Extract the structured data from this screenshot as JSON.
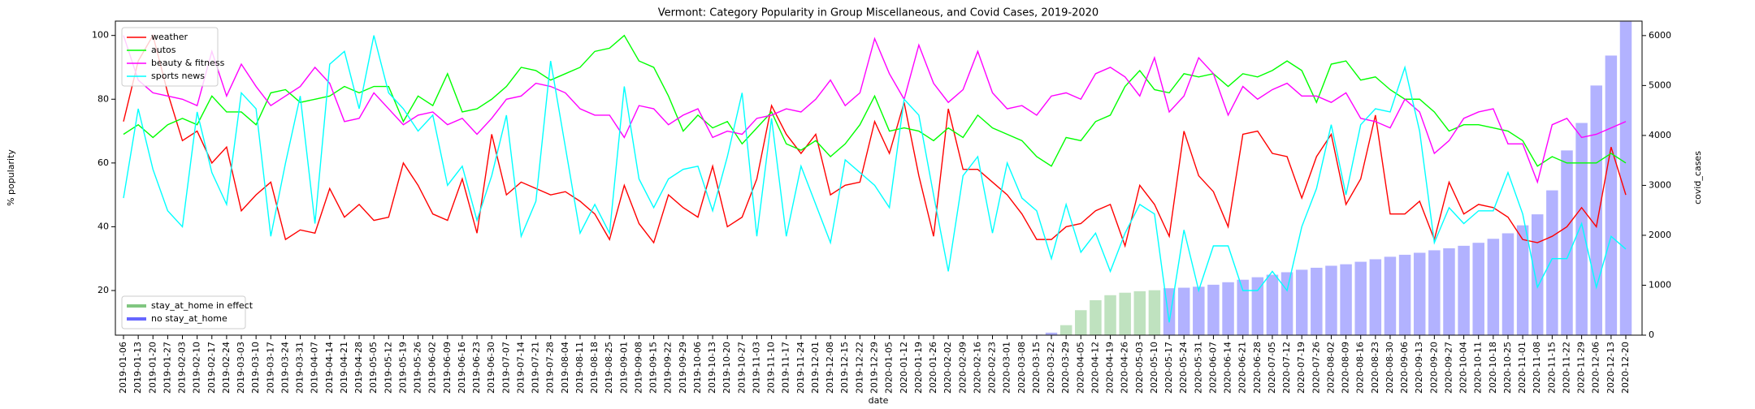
{
  "chart_data": {
    "type": "line",
    "title": "Vermont: Category Popularity in Group Miscellaneous, and Covid Cases, 2019-2020",
    "xlabel": "date",
    "ylabel": "% popularity",
    "y2label": "covid_cases",
    "x": [
      "2019-01-06",
      "2019-01-13",
      "2019-01-20",
      "2019-01-27",
      "2019-02-03",
      "2019-02-10",
      "2019-02-17",
      "2019-02-24",
      "2019-03-03",
      "2019-03-10",
      "2019-03-17",
      "2019-03-24",
      "2019-03-31",
      "2019-04-07",
      "2019-04-14",
      "2019-04-21",
      "2019-04-28",
      "2019-05-05",
      "2019-05-12",
      "2019-05-19",
      "2019-05-26",
      "2019-06-02",
      "2019-06-09",
      "2019-06-16",
      "2019-06-23",
      "2019-06-30",
      "2019-07-07",
      "2019-07-14",
      "2019-07-21",
      "2019-07-28",
      "2019-08-04",
      "2019-08-11",
      "2019-08-18",
      "2019-08-25",
      "2019-09-01",
      "2019-09-08",
      "2019-09-15",
      "2019-09-22",
      "2019-09-29",
      "2019-10-06",
      "2019-10-13",
      "2019-10-20",
      "2019-10-27",
      "2019-11-03",
      "2019-11-10",
      "2019-11-17",
      "2019-11-24",
      "2019-12-01",
      "2019-12-08",
      "2019-12-15",
      "2019-12-22",
      "2019-12-29",
      "2020-01-05",
      "2020-01-12",
      "2020-01-19",
      "2020-01-26",
      "2020-02-02",
      "2020-02-09",
      "2020-02-16",
      "2020-02-23",
      "2020-03-01",
      "2020-03-08",
      "2020-03-15",
      "2020-03-22",
      "2020-03-29",
      "2020-04-05",
      "2020-04-12",
      "2020-04-19",
      "2020-04-26",
      "2020-05-03",
      "2020-05-10",
      "2020-05-17",
      "2020-05-24",
      "2020-05-31",
      "2020-06-07",
      "2020-06-14",
      "2020-06-21",
      "2020-06-28",
      "2020-07-05",
      "2020-07-12",
      "2020-07-19",
      "2020-07-26",
      "2020-08-02",
      "2020-08-09",
      "2020-08-16",
      "2020-08-23",
      "2020-08-30",
      "2020-09-06",
      "2020-09-13",
      "2020-09-20",
      "2020-09-27",
      "2020-10-04",
      "2020-10-11",
      "2020-10-18",
      "2020-10-25",
      "2020-11-01",
      "2020-11-08",
      "2020-11-15",
      "2020-11-22",
      "2020-11-29",
      "2020-12-06",
      "2020-12-13",
      "2020-12-20"
    ],
    "series": [
      {
        "name": "weather",
        "color": "#ff0000",
        "axis": "y",
        "values": [
          73,
          92,
          100,
          82,
          67,
          70,
          60,
          65,
          45,
          50,
          54,
          36,
          39,
          38,
          52,
          43,
          47,
          42,
          43,
          60,
          53,
          44,
          42,
          55,
          38,
          69,
          50,
          54,
          52,
          50,
          51,
          48,
          44,
          36,
          53,
          41,
          35,
          50,
          46,
          43,
          59,
          40,
          43,
          55,
          78,
          69,
          63,
          69,
          50,
          53,
          54,
          73,
          63,
          79,
          56,
          37,
          77,
          58,
          58,
          54,
          50,
          44,
          36,
          36,
          40,
          41,
          45,
          47,
          34,
          53,
          47,
          37,
          70,
          56,
          51,
          40,
          69,
          70,
          63,
          62,
          49,
          62,
          69,
          47,
          55,
          75,
          44,
          44,
          48,
          36,
          54,
          44,
          47,
          46,
          43,
          36,
          35,
          37,
          40,
          46,
          40,
          65,
          50
        ]
      },
      {
        "name": "autos",
        "color": "#00ff00",
        "axis": "y",
        "values": [
          69,
          72,
          68,
          72,
          74,
          72,
          81,
          76,
          76,
          72,
          82,
          83,
          79,
          80,
          81,
          84,
          82,
          84,
          84,
          73,
          81,
          78,
          88,
          76,
          77,
          80,
          84,
          90,
          89,
          86,
          88,
          90,
          95,
          96,
          100,
          92,
          90,
          81,
          70,
          75,
          71,
          73,
          66,
          71,
          76,
          66,
          64,
          67,
          62,
          66,
          72,
          81,
          70,
          71,
          70,
          67,
          71,
          68,
          75,
          71,
          69,
          67,
          62,
          59,
          68,
          67,
          73,
          75,
          84,
          89,
          83,
          82,
          88,
          87,
          88,
          84,
          88,
          87,
          89,
          92,
          89,
          79,
          91,
          92,
          86,
          87,
          83,
          80,
          80,
          76,
          70,
          72,
          72,
          71,
          70,
          67,
          59,
          62,
          60,
          60,
          60,
          63,
          60
        ]
      },
      {
        "name": "beauty & fitness",
        "color": "#ff00ff",
        "axis": "y",
        "values": [
          100,
          86,
          82,
          81,
          80,
          78,
          95,
          81,
          91,
          84,
          78,
          81,
          84,
          90,
          85,
          73,
          74,
          82,
          77,
          72,
          75,
          76,
          72,
          74,
          69,
          74,
          80,
          81,
          85,
          84,
          82,
          77,
          75,
          75,
          68,
          78,
          77,
          72,
          75,
          77,
          68,
          70,
          69,
          74,
          75,
          77,
          76,
          80,
          86,
          78,
          82,
          99,
          88,
          80,
          97,
          85,
          79,
          83,
          95,
          82,
          77,
          78,
          75,
          81,
          82,
          80,
          88,
          90,
          87,
          81,
          93,
          76,
          81,
          93,
          88,
          75,
          84,
          80,
          83,
          85,
          81,
          81,
          79,
          82,
          74,
          73,
          71,
          80,
          76,
          63,
          67,
          74,
          76,
          77,
          66,
          66,
          54,
          72,
          74,
          68,
          69,
          71,
          73
        ]
      },
      {
        "name": "sports news",
        "color": "#00ffff",
        "axis": "y",
        "values": [
          49,
          77,
          58,
          45,
          40,
          76,
          57,
          47,
          82,
          77,
          37,
          60,
          81,
          41,
          91,
          95,
          77,
          100,
          82,
          77,
          70,
          75,
          53,
          59,
          42,
          56,
          75,
          37,
          48,
          92,
          65,
          38,
          47,
          38,
          84,
          55,
          46,
          55,
          58,
          59,
          45,
          62,
          82,
          37,
          74,
          37,
          59,
          47,
          35,
          61,
          57,
          53,
          46,
          80,
          75,
          50,
          26,
          56,
          62,
          38,
          60,
          49,
          45,
          30,
          47,
          32,
          38,
          26,
          38,
          47,
          44,
          10,
          39,
          20,
          34,
          34,
          20,
          20,
          26,
          20,
          40,
          52,
          72,
          50,
          72,
          77,
          76,
          90,
          70,
          35,
          46,
          41,
          45,
          45,
          57,
          44,
          21,
          30,
          30,
          41,
          21,
          37,
          33
        ]
      },
      {
        "type": "bar",
        "axis": "y2",
        "values": [
          0,
          0,
          0,
          0,
          0,
          0,
          0,
          0,
          0,
          0,
          0,
          0,
          0,
          0,
          0,
          0,
          0,
          0,
          0,
          0,
          0,
          0,
          0,
          0,
          0,
          0,
          0,
          0,
          0,
          0,
          0,
          0,
          0,
          0,
          0,
          0,
          0,
          0,
          0,
          0,
          0,
          0,
          0,
          0,
          0,
          0,
          0,
          0,
          0,
          0,
          0,
          0,
          0,
          0,
          0,
          0,
          0,
          0,
          0,
          0,
          0,
          0,
          10,
          50,
          200,
          500,
          700,
          800,
          850,
          880,
          900,
          940,
          950,
          970,
          1010,
          1060,
          1110,
          1160,
          1210,
          1260,
          1310,
          1350,
          1390,
          1420,
          1470,
          1520,
          1570,
          1610,
          1650,
          1700,
          1740,
          1790,
          1850,
          1930,
          2040,
          2200,
          2420,
          2900,
          3700,
          4250,
          5000,
          5600,
          6280
        ]
      }
    ],
    "stay_at_home": [
      "2020-03-29",
      "2020-05-10"
    ],
    "bar_legend": [
      {
        "name": "stay_at_home in effect",
        "color": "#2ca02c"
      },
      {
        "name": "no stay_at_home",
        "color": "#0000ff"
      }
    ],
    "bar_alpha": 0.3,
    "legend": "upper left",
    "bar_legend_loc": "lower left",
    "ylim": [
      6,
      104.5
    ],
    "yticks": [
      20,
      40,
      60,
      80,
      100
    ],
    "y2lim": [
      0,
      6290
    ],
    "y2ticks": [
      0,
      1000,
      2000,
      3000,
      4000,
      5000,
      6000
    ]
  }
}
